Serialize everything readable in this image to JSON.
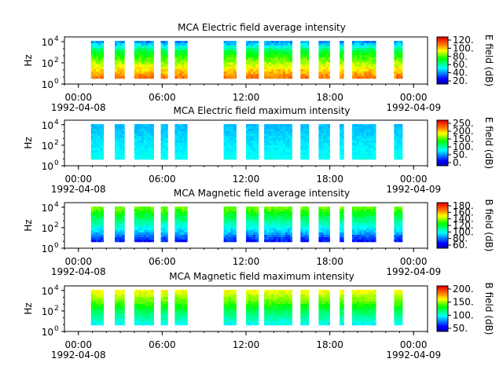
{
  "chart_data": [
    {
      "type": "heatmap",
      "title": "MCA  Electric field average intensity",
      "ylabel": "Hz",
      "ytick_exponents": [
        "4",
        "2",
        "0"
      ],
      "ytick_base": "10",
      "xtick_labels": [
        "00:00",
        "06:00",
        "12:00",
        "18:00",
        "00:00"
      ],
      "xdates": [
        "1992-04-08",
        "1992-04-09"
      ],
      "colorbar_label": "E field (dB)",
      "colorbar_ticks": [
        "120.",
        "100.",
        "80.",
        "60.",
        "40.",
        "20."
      ],
      "colorbar_range": [
        10,
        130
      ],
      "palette": "spectral",
      "data_segments_hours": [
        [
          0.9,
          1.8
        ],
        [
          2.6,
          3.3
        ],
        [
          4.0,
          5.4
        ],
        [
          5.9,
          6.4
        ],
        [
          6.9,
          7.8
        ],
        [
          10.4,
          11.3
        ],
        [
          12.0,
          12.9
        ],
        [
          13.3,
          15.3
        ],
        [
          15.9,
          16.5
        ],
        [
          17.2,
          18.0
        ],
        [
          18.7,
          19.0
        ],
        [
          19.6,
          21.3
        ],
        [
          22.6,
          23.2
        ]
      ],
      "intensity_bands": [
        [
          0.0,
          40
        ],
        [
          0.25,
          70
        ],
        [
          0.5,
          85
        ],
        [
          0.75,
          100
        ],
        [
          1.0,
          115
        ]
      ]
    },
    {
      "type": "heatmap",
      "title": "MCA  Electric field maximum intensity",
      "ylabel": "Hz",
      "ytick_exponents": [
        "4",
        "2",
        "0"
      ],
      "ytick_base": "10",
      "xtick_labels": [
        "00:00",
        "06:00",
        "12:00",
        "18:00",
        "00:00"
      ],
      "xdates": [
        "1992-04-08",
        "1992-04-09"
      ],
      "colorbar_label": "E field (dB)",
      "colorbar_ticks": [
        "250.",
        "200.",
        "150.",
        "100.",
        "50.",
        "0."
      ],
      "colorbar_range": [
        0,
        260
      ],
      "palette": "spectral",
      "data_segments_hours": [
        [
          0.9,
          1.8
        ],
        [
          2.6,
          3.3
        ],
        [
          4.0,
          5.4
        ],
        [
          5.9,
          6.4
        ],
        [
          6.9,
          7.8
        ],
        [
          10.4,
          11.3
        ],
        [
          12.0,
          12.9
        ],
        [
          13.3,
          15.3
        ],
        [
          15.9,
          16.5
        ],
        [
          17.2,
          18.0
        ],
        [
          18.7,
          19.0
        ],
        [
          19.6,
          21.3
        ],
        [
          22.6,
          23.2
        ]
      ],
      "intensity_bands": [
        [
          0.0,
          75
        ],
        [
          0.5,
          85
        ],
        [
          1.0,
          95
        ]
      ]
    },
    {
      "type": "heatmap",
      "title": "MCA  Magnetic field average intensity",
      "ylabel": "Hz",
      "ytick_exponents": [
        "4",
        "2",
        "0"
      ],
      "ytick_base": "10",
      "xtick_labels": [
        "00:00",
        "06:00",
        "12:00",
        "18:00",
        "00:00"
      ],
      "xdates": [
        "1992-04-08",
        "1992-04-09"
      ],
      "colorbar_label": "B field (dB)",
      "colorbar_ticks": [
        "180.",
        "160.",
        "140.",
        "120.",
        "100.",
        "80.",
        "60."
      ],
      "colorbar_range": [
        55,
        190
      ],
      "palette": "spectral",
      "data_segments_hours": [
        [
          0.9,
          1.8
        ],
        [
          2.6,
          3.3
        ],
        [
          4.0,
          5.4
        ],
        [
          5.9,
          6.4
        ],
        [
          6.9,
          7.8
        ],
        [
          10.4,
          11.3
        ],
        [
          12.0,
          12.9
        ],
        [
          13.3,
          15.3
        ],
        [
          15.9,
          16.5
        ],
        [
          17.2,
          18.0
        ],
        [
          18.7,
          19.0
        ],
        [
          19.6,
          21.3
        ],
        [
          22.6,
          23.2
        ]
      ],
      "intensity_bands": [
        [
          0.0,
          140
        ],
        [
          0.2,
          125
        ],
        [
          0.45,
          110
        ],
        [
          0.7,
          95
        ],
        [
          0.85,
          80
        ],
        [
          1.0,
          70
        ]
      ]
    },
    {
      "type": "heatmap",
      "title": "MCA  Magnetic field maximum intensity",
      "ylabel": "Hz",
      "ytick_exponents": [
        "4",
        "2",
        "0"
      ],
      "ytick_base": "10",
      "xtick_labels": [
        "00:00",
        "06:00",
        "12:00",
        "18:00",
        "00:00"
      ],
      "xdates": [
        "1992-04-08",
        "1992-04-09"
      ],
      "colorbar_label": "B field (dB)",
      "colorbar_ticks": [
        "200.",
        "150.",
        "100.",
        "50."
      ],
      "colorbar_range": [
        30,
        210
      ],
      "palette": "spectral",
      "data_segments_hours": [
        [
          0.9,
          1.8
        ],
        [
          2.6,
          3.3
        ],
        [
          4.0,
          5.4
        ],
        [
          5.9,
          6.4
        ],
        [
          6.9,
          7.8
        ],
        [
          10.4,
          11.3
        ],
        [
          12.0,
          12.9
        ],
        [
          13.3,
          15.3
        ],
        [
          15.9,
          16.5
        ],
        [
          17.2,
          18.0
        ],
        [
          18.7,
          19.0
        ],
        [
          19.6,
          21.3
        ],
        [
          22.6,
          23.2
        ]
      ],
      "intensity_bands": [
        [
          0.0,
          160
        ],
        [
          0.3,
          140
        ],
        [
          0.6,
          115
        ],
        [
          0.85,
          100
        ],
        [
          1.0,
          90
        ]
      ]
    }
  ]
}
